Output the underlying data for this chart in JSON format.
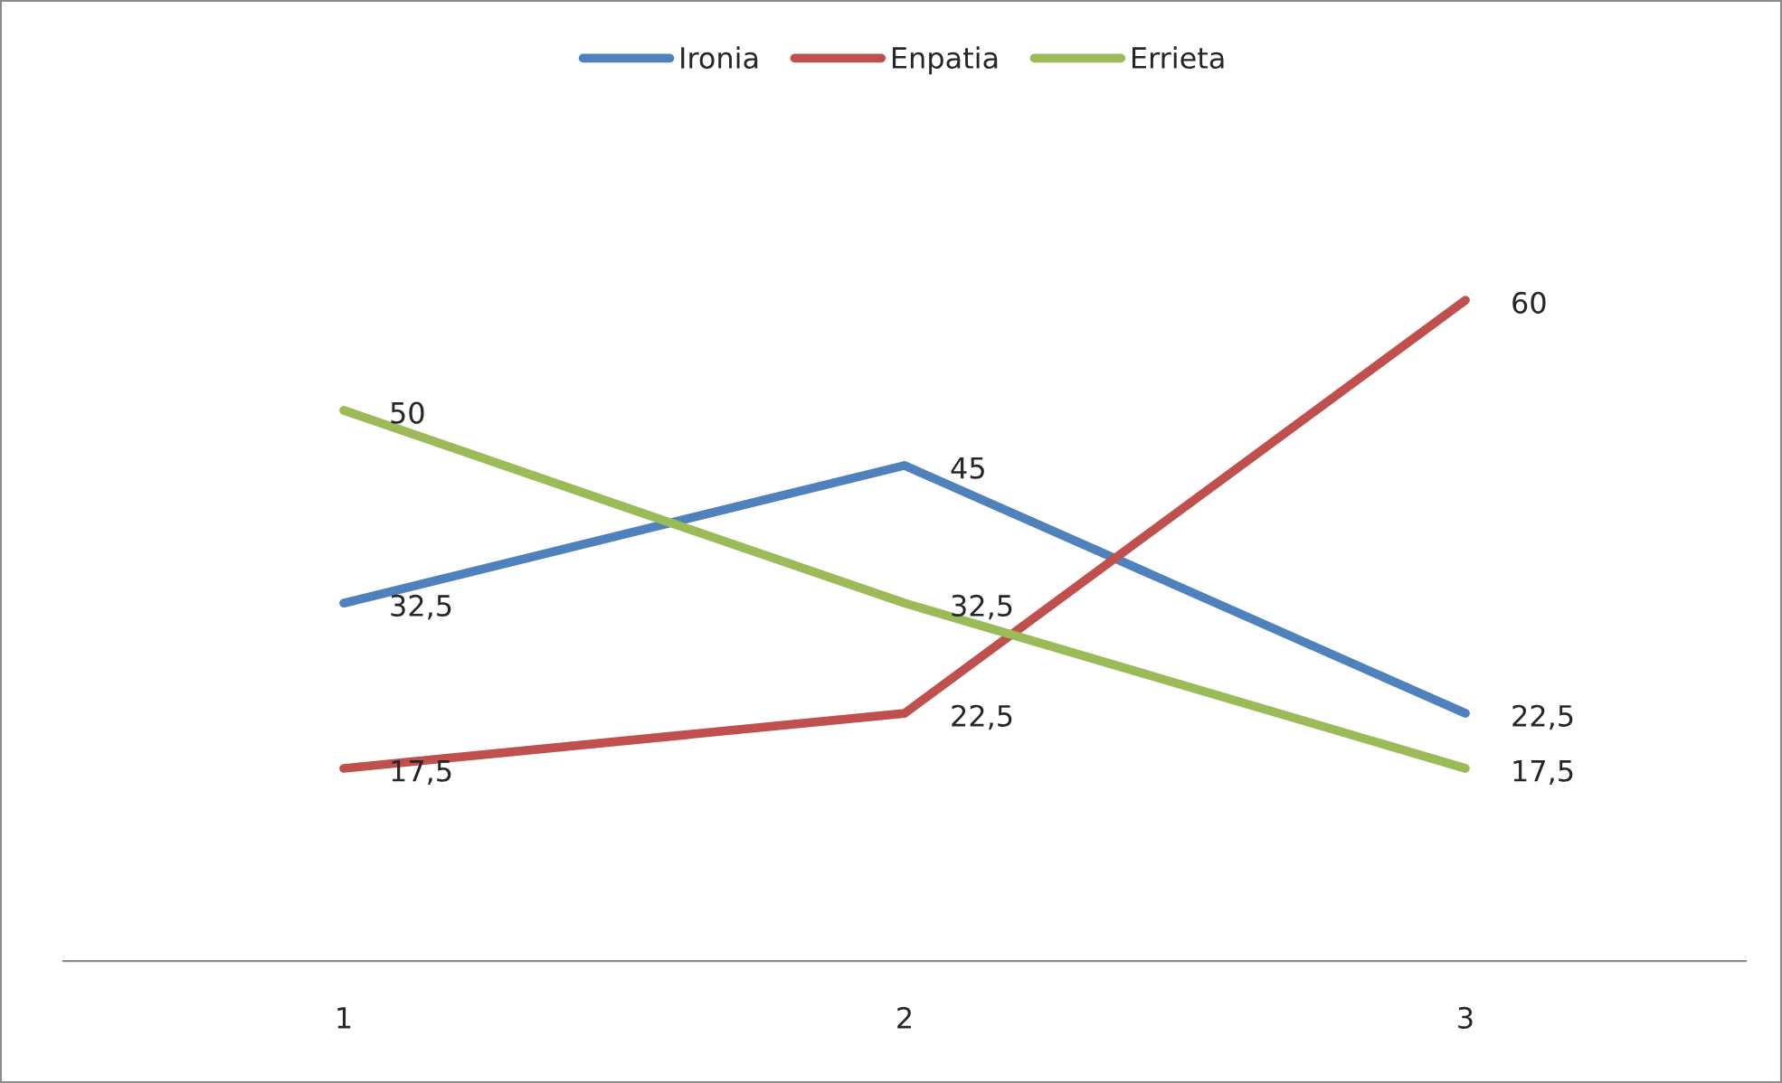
{
  "chart_data": {
    "type": "line",
    "categories": [
      "1",
      "2",
      "3"
    ],
    "series": [
      {
        "name": "Ironia",
        "color": "#4f81bd",
        "values": [
          32.5,
          45,
          22.5
        ],
        "value_labels": [
          "32,5",
          "45",
          "22,5"
        ]
      },
      {
        "name": "Enpatia",
        "color": "#c0504d",
        "values": [
          17.5,
          22.5,
          60
        ],
        "value_labels": [
          "17,5",
          "22,5",
          "60"
        ]
      },
      {
        "name": "Errieta",
        "color": "#9bbb59",
        "values": [
          50,
          32.5,
          17.5
        ],
        "value_labels": [
          "50",
          "32,5",
          "17,5"
        ]
      }
    ],
    "legend": "top",
    "grid": false,
    "marker": "none",
    "line_style": "solid"
  }
}
